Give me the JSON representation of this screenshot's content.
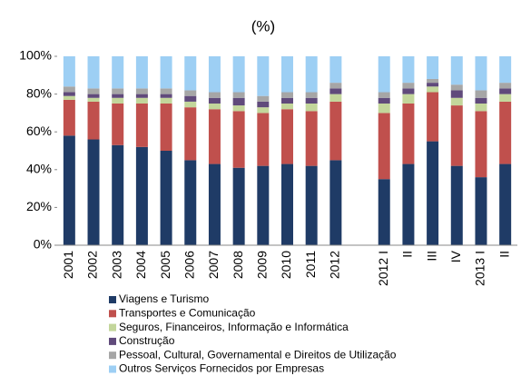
{
  "chart_data": {
    "type": "bar",
    "stacked": true,
    "title": "(%)",
    "categories": [
      "2001",
      "2002",
      "2003",
      "2004",
      "2005",
      "2006",
      "2007",
      "2008",
      "2009",
      "2010",
      "2011",
      "2012",
      null,
      "2012 I",
      "II",
      "III",
      "IV",
      "2013 I",
      "II"
    ],
    "series": [
      {
        "name": "Viagens e Turismo",
        "color": "#1f3b66",
        "values": [
          58,
          56,
          53,
          52,
          50,
          45,
          43,
          41,
          42,
          43,
          42,
          45,
          null,
          35,
          43,
          55,
          42,
          36,
          43
        ]
      },
      {
        "name": "Transportes e Comunicação",
        "color": "#c0504d",
        "values": [
          19,
          20,
          22,
          23,
          25,
          28,
          29,
          30,
          28,
          29,
          29,
          31,
          null,
          35,
          32,
          26,
          32,
          35,
          33
        ]
      },
      {
        "name": "Seguros, Financeiros, Informação e Informática",
        "color": "#c3d69b",
        "values": [
          2,
          2,
          3,
          3,
          3,
          3,
          3,
          3,
          3,
          3,
          4,
          4,
          null,
          5,
          5,
          3,
          4,
          4,
          4
        ]
      },
      {
        "name": "Construção",
        "color": "#604a7b",
        "values": [
          2,
          2,
          2,
          2,
          2,
          3,
          3,
          4,
          3,
          3,
          3,
          3,
          null,
          3,
          3,
          2,
          4,
          3,
          3
        ]
      },
      {
        "name": "Pessoal, Cultural, Governamental e Direitos de Utilização",
        "color": "#a6a6a6",
        "values": [
          3,
          3,
          3,
          3,
          3,
          3,
          3,
          3,
          3,
          3,
          3,
          3,
          null,
          3,
          3,
          2,
          3,
          4,
          3
        ]
      },
      {
        "name": "Outros Serviços Fornecidos por Empresas",
        "color": "#9dcff4",
        "values": [
          16,
          17,
          17,
          17,
          17,
          18,
          19,
          19,
          21,
          19,
          19,
          14,
          null,
          19,
          14,
          12,
          15,
          18,
          14
        ]
      }
    ],
    "ylim": [
      0,
      100
    ],
    "yticks": [
      {
        "value": 0,
        "label": "0%"
      },
      {
        "value": 20,
        "label": "20%"
      },
      {
        "value": 40,
        "label": "40%"
      },
      {
        "value": 60,
        "label": "60%"
      },
      {
        "value": 80,
        "label": "80%"
      },
      {
        "value": 100,
        "label": "100%"
      }
    ],
    "grid": false
  }
}
